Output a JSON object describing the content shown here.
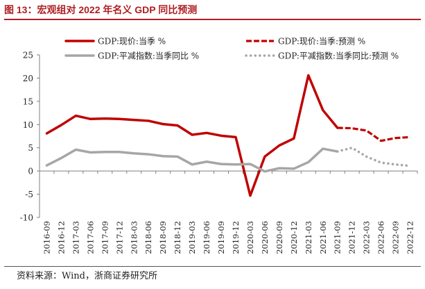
{
  "title": "图 13：宏观组对 2022 年名义 GDP 同比预测",
  "source": "资料来源：Wind，浙商证券研究所",
  "colors": {
    "accent": "#b01e23",
    "nominal": "#c00000",
    "deflator": "#a6a6a6",
    "forecast_deflator": "#a6a6a6",
    "text": "#222222",
    "axis": "#7f7f7f"
  },
  "chart_data": {
    "type": "line",
    "title": "",
    "xlabel": "",
    "ylabel": "",
    "ylim": [
      -10,
      25
    ],
    "yticks": [
      -10,
      -5,
      0,
      5,
      10,
      15,
      20,
      25
    ],
    "grid": false,
    "legend_position": "top",
    "categories": [
      "2016-09",
      "2016-12",
      "2017-03",
      "2017-06",
      "2017-09",
      "2017-12",
      "2018-03",
      "2018-06",
      "2018-09",
      "2018-12",
      "2019-03",
      "2019-06",
      "2019-09",
      "2019-12",
      "2020-03",
      "2020-06",
      "2020-09",
      "2020-12",
      "2021-03",
      "2021-06",
      "2021-09",
      "2021-12",
      "2022-03",
      "2022-06",
      "2022-09",
      "2022-12"
    ],
    "series": [
      {
        "name": "GDP:现价:当季 %",
        "style": "solid",
        "color": "#c00000",
        "values": [
          8.1,
          9.9,
          11.9,
          11.2,
          11.3,
          11.2,
          11.0,
          10.8,
          10.1,
          9.8,
          7.8,
          8.2,
          7.6,
          7.3,
          -5.3,
          3.1,
          5.5,
          7.0,
          20.6,
          13.1,
          9.3,
          null,
          null,
          null,
          null,
          null
        ]
      },
      {
        "name": "GDP:现价:当季:预测 %",
        "style": "dashed",
        "color": "#c00000",
        "values": [
          null,
          null,
          null,
          null,
          null,
          null,
          null,
          null,
          null,
          null,
          null,
          null,
          null,
          null,
          null,
          null,
          null,
          null,
          null,
          null,
          9.3,
          9.2,
          8.7,
          6.5,
          7.1,
          7.3
        ]
      },
      {
        "name": "GDP:平减指数:当季同比 %",
        "style": "solid",
        "color": "#a6a6a6",
        "values": [
          1.2,
          2.8,
          4.6,
          4.0,
          4.1,
          4.1,
          3.8,
          3.6,
          3.2,
          3.1,
          1.4,
          2.0,
          1.5,
          1.4,
          1.5,
          -0.1,
          0.6,
          0.5,
          1.9,
          4.8,
          4.2,
          null,
          null,
          null,
          null,
          null
        ]
      },
      {
        "name": "GDP:平减指数:当季同比:预测 %",
        "style": "dotted",
        "color": "#a6a6a6",
        "values": [
          null,
          null,
          null,
          null,
          null,
          null,
          null,
          null,
          null,
          null,
          null,
          null,
          null,
          null,
          null,
          null,
          null,
          null,
          null,
          null,
          4.2,
          5.0,
          3.1,
          1.8,
          1.4,
          1.1
        ]
      }
    ]
  }
}
